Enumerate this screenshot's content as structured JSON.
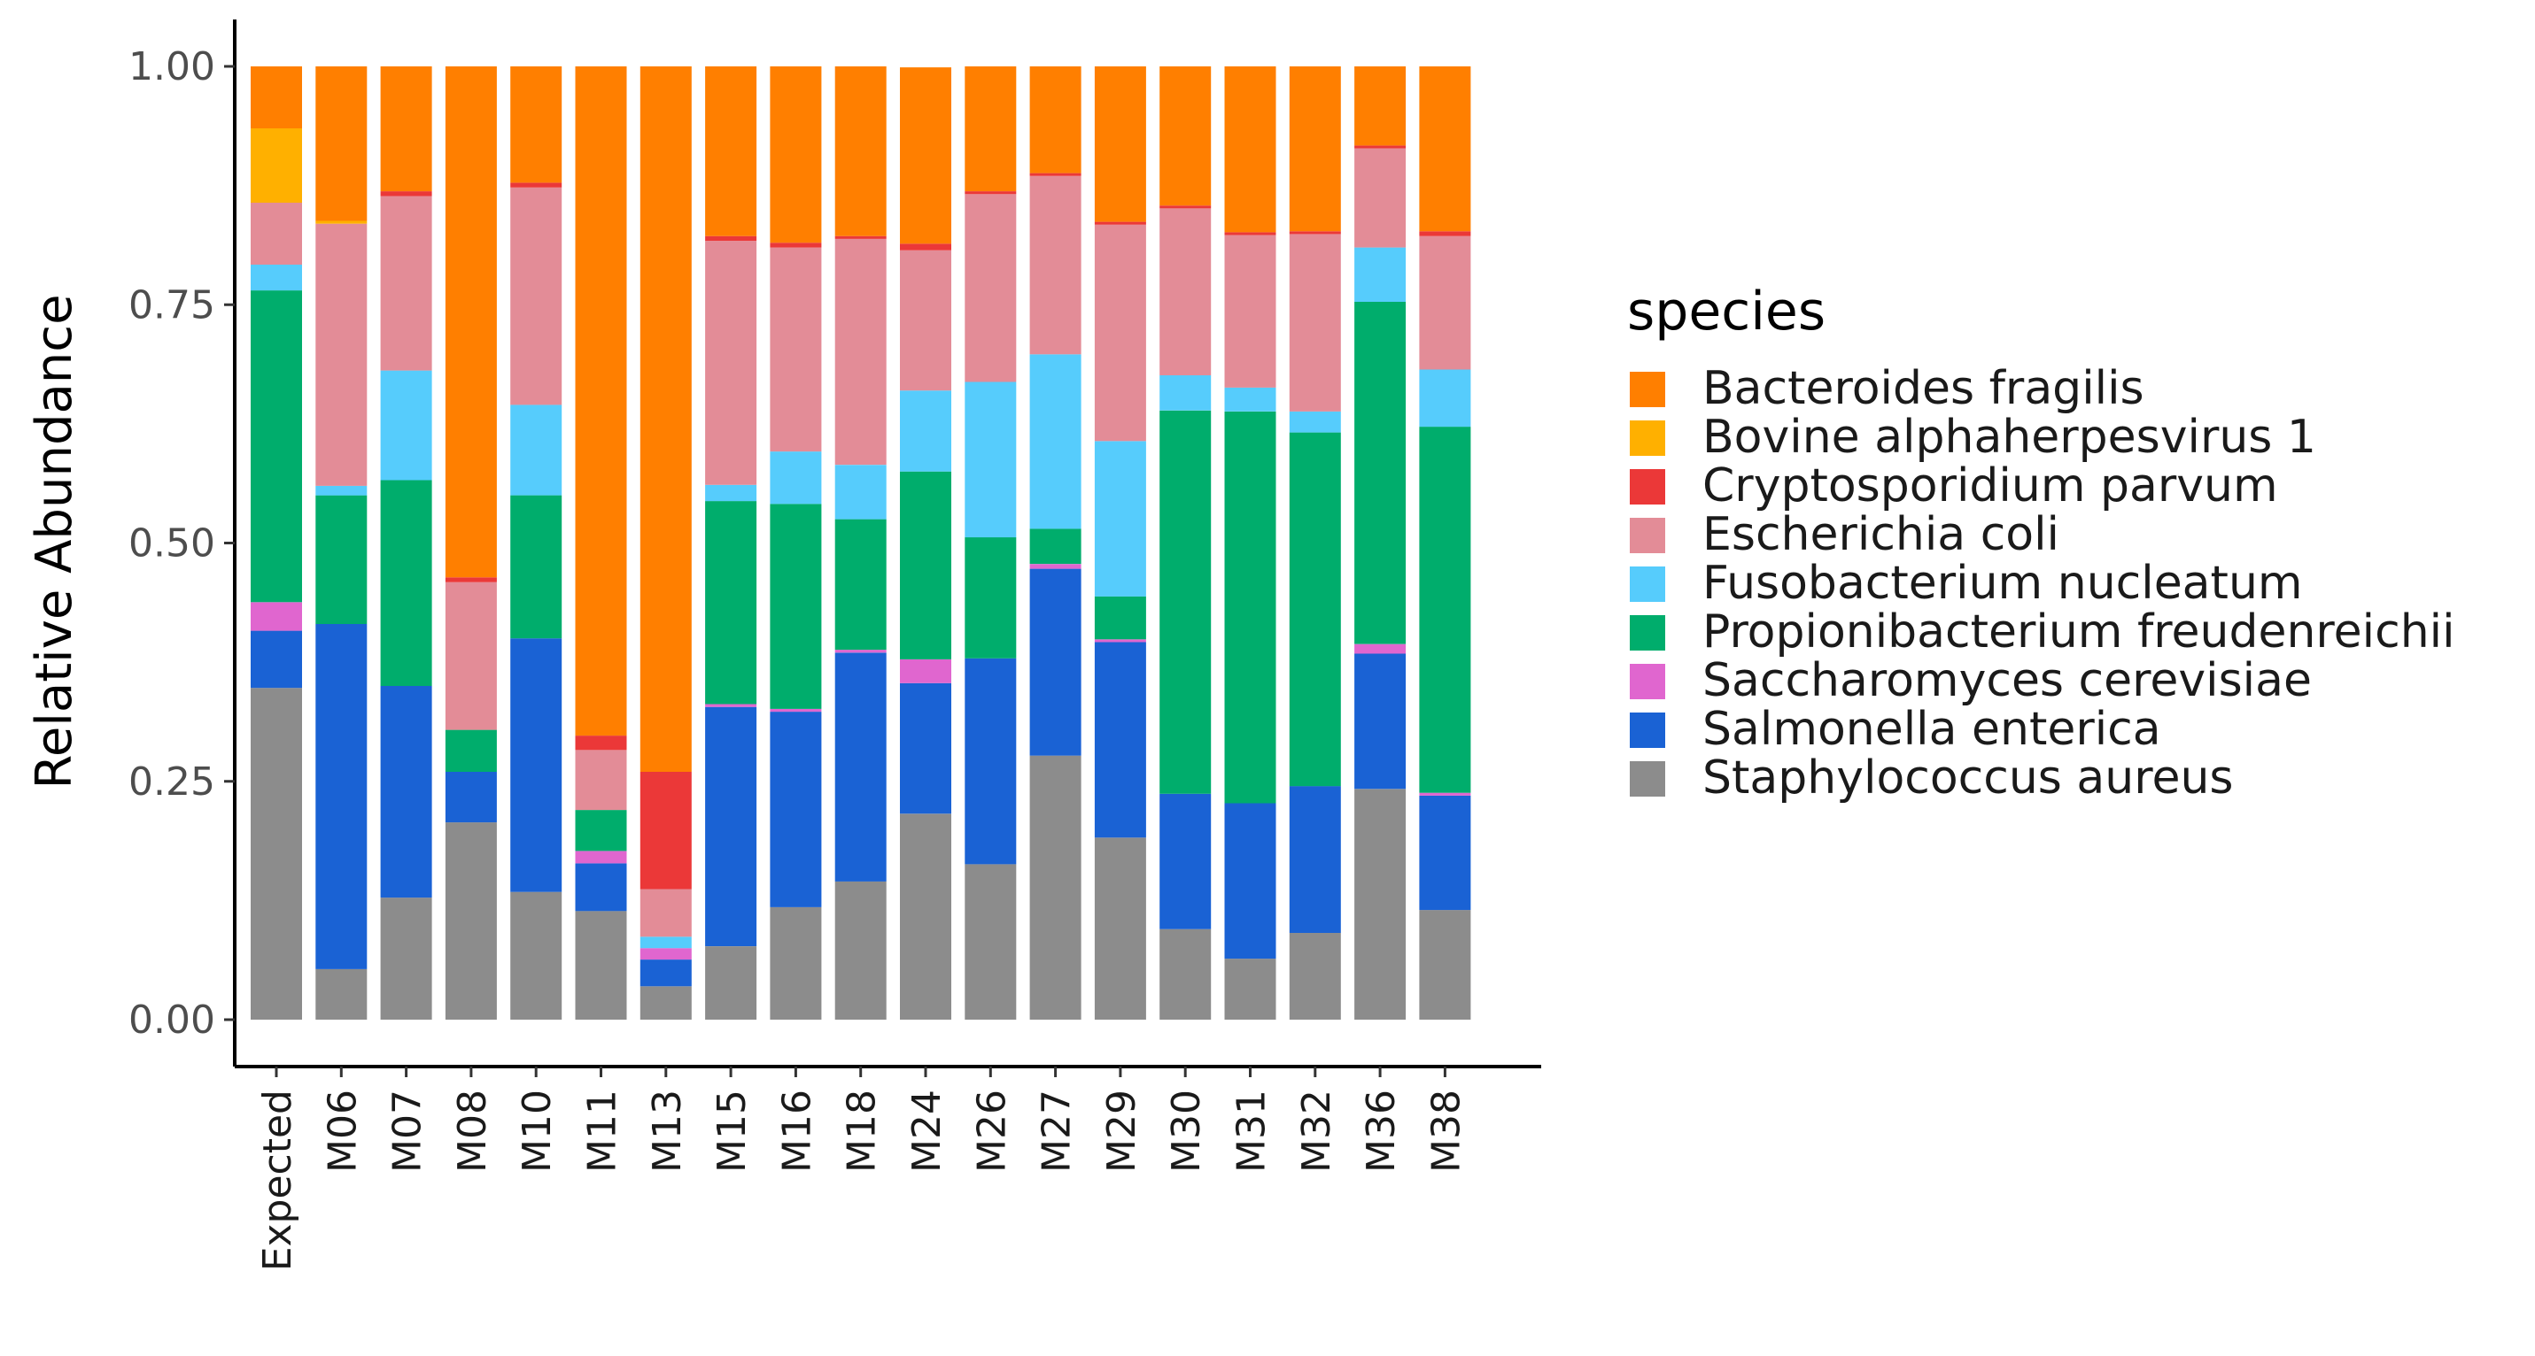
{
  "chart_data": {
    "type": "bar",
    "stacked": true,
    "categories": [
      "Expected",
      "M06",
      "M07",
      "M08",
      "M10",
      "M11",
      "M13",
      "M15",
      "M16",
      "M18",
      "M24",
      "M26",
      "M27",
      "M29",
      "M30",
      "M31",
      "M32",
      "M36",
      "M38"
    ],
    "ylabel": "Relative Abundance",
    "xlabel": "",
    "ylim": [
      0,
      1
    ],
    "yticks": [
      "0.00",
      "0.25",
      "0.50",
      "0.75",
      "1.00"
    ],
    "grid": false,
    "legend_title": "species",
    "legend_position": "right",
    "series": [
      {
        "name": "Staphylococcus aureus",
        "color": "#8c8c8c",
        "values": [
          0.348,
          0.053,
          0.128,
          0.207,
          0.134,
          0.114,
          0.035,
          0.077,
          0.118,
          0.145,
          0.216,
          0.163,
          0.277,
          0.191,
          0.095,
          0.064,
          0.091,
          0.242,
          0.115
        ]
      },
      {
        "name": "Salmonella enterica",
        "color": "#1a62d4",
        "values": [
          0.06,
          0.362,
          0.222,
          0.053,
          0.266,
          0.05,
          0.028,
          0.251,
          0.205,
          0.24,
          0.137,
          0.216,
          0.196,
          0.205,
          0.142,
          0.163,
          0.154,
          0.142,
          0.12
        ]
      },
      {
        "name": "Saccharomyces cerevisiae",
        "color": "#e066cf",
        "values": [
          0.03,
          0.0,
          0.0,
          0.0,
          0.0,
          0.013,
          0.012,
          0.003,
          0.003,
          0.003,
          0.025,
          0.0,
          0.005,
          0.003,
          0.0,
          0.0,
          0.0,
          0.01,
          0.003
        ]
      },
      {
        "name": "Propionibacterium freudenreichii",
        "color": "#00ad6c",
        "values": [
          0.327,
          0.135,
          0.216,
          0.044,
          0.15,
          0.043,
          0.0,
          0.213,
          0.215,
          0.137,
          0.197,
          0.127,
          0.037,
          0.045,
          0.402,
          0.411,
          0.371,
          0.359,
          0.384
        ]
      },
      {
        "name": "Fusobacterium nucleatum",
        "color": "#56ccfc",
        "values": [
          0.027,
          0.01,
          0.115,
          0.0,
          0.095,
          0.0,
          0.012,
          0.017,
          0.055,
          0.057,
          0.085,
          0.163,
          0.183,
          0.163,
          0.037,
          0.025,
          0.022,
          0.057,
          0.06
        ]
      },
      {
        "name": "Escherichia coli",
        "color": "#e38c97",
        "values": [
          0.065,
          0.275,
          0.183,
          0.155,
          0.228,
          0.063,
          0.05,
          0.256,
          0.214,
          0.237,
          0.147,
          0.197,
          0.187,
          0.227,
          0.175,
          0.16,
          0.186,
          0.104,
          0.14
        ]
      },
      {
        "name": "Cryptosporidium parvum",
        "color": "#eb3838",
        "values": [
          0.0,
          0.0,
          0.005,
          0.005,
          0.005,
          0.015,
          0.123,
          0.005,
          0.005,
          0.003,
          0.007,
          0.003,
          0.003,
          0.003,
          0.003,
          0.003,
          0.003,
          0.003,
          0.005
        ]
      },
      {
        "name": "Bovine alphaherpesvirus 1",
        "color": "#ffb000",
        "values": [
          0.078,
          0.003,
          0.0,
          0.0,
          0.0,
          0.0,
          0.0,
          0.0,
          0.0,
          0.0,
          0.0,
          0.0,
          0.0,
          0.0,
          0.0,
          0.0,
          0.0,
          0.0,
          0.0
        ]
      },
      {
        "name": "Bacteroides fragilis",
        "color": "#ff7f00",
        "values": [
          0.065,
          0.162,
          0.131,
          0.536,
          0.122,
          0.702,
          0.74,
          0.178,
          0.185,
          0.178,
          0.185,
          0.131,
          0.112,
          0.163,
          0.146,
          0.174,
          0.173,
          0.083,
          0.173
        ]
      }
    ],
    "legend_order": [
      "Bacteroides fragilis",
      "Bovine alphaherpesvirus 1",
      "Cryptosporidium parvum",
      "Escherichia coli",
      "Fusobacterium nucleatum",
      "Propionibacterium freudenreichii",
      "Saccharomyces cerevisiae",
      "Salmonella enterica",
      "Staphylococcus aureus"
    ]
  }
}
